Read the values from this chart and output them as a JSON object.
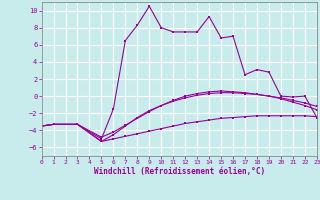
{
  "xlabel": "Windchill (Refroidissement éolien,°C)",
  "background_color": "#c8ecec",
  "grid_color": "#ffffff",
  "line_color": "#990099",
  "ylim": [
    -7,
    11
  ],
  "xlim": [
    0,
    23
  ],
  "yticks": [
    -6,
    -4,
    -2,
    0,
    2,
    4,
    6,
    8,
    10
  ],
  "xticks": [
    0,
    1,
    2,
    3,
    4,
    5,
    6,
    7,
    8,
    9,
    10,
    11,
    12,
    13,
    14,
    15,
    16,
    17,
    18,
    19,
    20,
    21,
    22,
    23
  ],
  "line1_x": [
    0,
    1,
    3,
    5,
    6,
    7,
    8,
    9,
    10,
    11,
    12,
    13,
    14,
    15,
    16,
    17,
    18,
    19,
    20,
    21,
    22,
    23
  ],
  "line1_y": [
    -3.5,
    -3.3,
    -3.3,
    -5.3,
    -5.0,
    -4.7,
    -4.4,
    -4.1,
    -3.8,
    -3.5,
    -3.2,
    -3.0,
    -2.8,
    -2.6,
    -2.5,
    -2.4,
    -2.3,
    -2.3,
    -2.3,
    -2.3,
    -2.3,
    -2.4
  ],
  "line2_x": [
    0,
    1,
    3,
    5,
    6,
    7,
    8,
    9,
    10,
    11,
    12,
    13,
    14,
    15,
    16,
    17,
    18,
    19,
    20,
    21,
    22,
    23
  ],
  "line2_y": [
    -3.5,
    -3.3,
    -3.3,
    -4.8,
    -4.2,
    -3.4,
    -2.6,
    -1.8,
    -1.1,
    -0.5,
    -0.0,
    0.3,
    0.5,
    0.6,
    0.5,
    0.4,
    0.2,
    -0.0,
    -0.2,
    -0.5,
    -0.8,
    -1.2
  ],
  "line3_x": [
    0,
    1,
    3,
    5,
    6,
    7,
    8,
    9,
    10,
    11,
    12,
    13,
    14,
    15,
    16,
    17,
    18,
    19,
    20,
    21,
    22,
    23
  ],
  "line3_y": [
    -3.5,
    -3.3,
    -3.3,
    -5.0,
    -1.5,
    6.5,
    8.3,
    10.5,
    8.0,
    7.5,
    7.5,
    7.5,
    9.3,
    6.8,
    7.0,
    2.5,
    3.1,
    2.8,
    0.0,
    -0.1,
    -0.0,
    -2.5
  ],
  "line4_x": [
    0,
    1,
    3,
    5,
    6,
    7,
    8,
    9,
    10,
    11,
    12,
    13,
    14,
    15,
    16,
    17,
    18,
    19,
    20,
    21,
    22,
    23
  ],
  "line4_y": [
    -3.5,
    -3.3,
    -3.3,
    -5.3,
    -4.5,
    -3.5,
    -2.5,
    -1.7,
    -1.1,
    -0.6,
    -0.2,
    0.1,
    0.3,
    0.4,
    0.4,
    0.3,
    0.2,
    0.0,
    -0.3,
    -0.7,
    -1.1,
    -1.6
  ]
}
